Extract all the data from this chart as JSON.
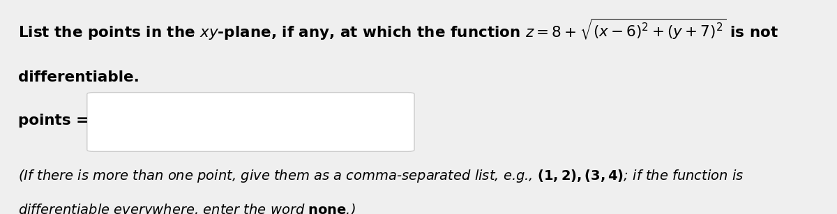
{
  "bg_color": "#efefef",
  "box_color": "#ffffff",
  "box_border_color": "#cccccc",
  "text_color": "#000000",
  "figwidth": 12.0,
  "figheight": 3.07,
  "dpi": 100,
  "fs_main": 15.5,
  "fs_hint": 14.0
}
